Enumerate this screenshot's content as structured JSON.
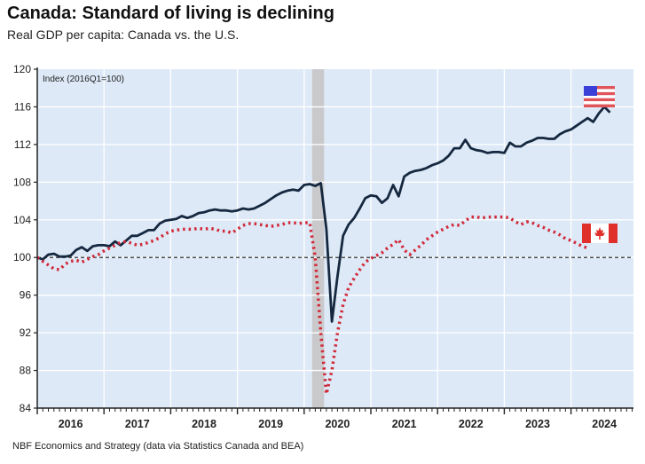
{
  "chart_data": {
    "type": "line",
    "title": "Canada: Standard of living is declining",
    "subtitle": "Real GDP per capita: Canada vs. the U.S.",
    "index_note": "Index (2016Q1=100)",
    "source": "NBF Economics and Strategy (data via Statistics Canada and BEA)",
    "xlabel": "",
    "ylabel": "",
    "ylim": [
      84,
      120
    ],
    "yticks": [
      84,
      88,
      92,
      96,
      100,
      104,
      108,
      112,
      116,
      120
    ],
    "xlim": [
      2016.0,
      2024.95
    ],
    "year_labels": [
      "2016",
      "2017",
      "2018",
      "2019",
      "2020",
      "2021",
      "2022",
      "2023",
      "2024"
    ],
    "grid": true,
    "reference_line": 100,
    "recession_band": [
      2020.12,
      2020.3
    ],
    "legend": [
      {
        "name": "United States",
        "icon": "us-flag",
        "placement": "top-right"
      },
      {
        "name": "Canada",
        "icon": "canada-flag",
        "placement": "right"
      }
    ],
    "colors": {
      "us": "#15283f",
      "canada": "#d12a3a",
      "plot_bg": "#dde9f7",
      "recession": "#c9c9cc"
    },
    "series": [
      {
        "name": "United States",
        "style": "solid",
        "x_start": 2016.0,
        "x_step_months": 1,
        "values": [
          100.0,
          99.8,
          100.3,
          100.4,
          100.1,
          100.1,
          100.2,
          100.8,
          101.1,
          100.7,
          101.2,
          101.3,
          101.3,
          101.2,
          101.7,
          101.3,
          101.8,
          102.3,
          102.3,
          102.6,
          102.9,
          102.9,
          103.6,
          103.9,
          104.0,
          104.1,
          104.4,
          104.2,
          104.4,
          104.7,
          104.8,
          105.0,
          105.1,
          105.0,
          105.0,
          104.9,
          105.0,
          105.2,
          105.1,
          105.2,
          105.5,
          105.8,
          106.2,
          106.6,
          106.9,
          107.1,
          107.2,
          107.1,
          107.7,
          107.8,
          107.6,
          107.9,
          103.0,
          93.2,
          98.0,
          102.3,
          103.5,
          104.2,
          105.2,
          106.3,
          106.6,
          106.5,
          105.8,
          106.3,
          107.7,
          106.5,
          108.6,
          109.0,
          109.2,
          109.3,
          109.5,
          109.8,
          110.0,
          110.3,
          110.8,
          111.6,
          111.6,
          112.5,
          111.6,
          111.4,
          111.3,
          111.1,
          111.2,
          111.2,
          111.1,
          112.2,
          111.8,
          111.8,
          112.2,
          112.4,
          112.7,
          112.7,
          112.6,
          112.6,
          113.1,
          113.4,
          113.6,
          114.0,
          114.4,
          114.8,
          114.4,
          115.3,
          116.0,
          115.4
        ]
      },
      {
        "name": "Canada",
        "style": "dotted",
        "x_start": 2016.0,
        "x_step_months": 1,
        "values": [
          100.0,
          99.6,
          99.2,
          98.8,
          98.7,
          99.3,
          99.6,
          99.7,
          99.5,
          99.8,
          100.1,
          100.3,
          100.7,
          101.0,
          101.3,
          101.6,
          101.7,
          101.5,
          101.3,
          101.4,
          101.6,
          101.8,
          102.1,
          102.5,
          102.8,
          102.9,
          103.0,
          103.0,
          103.0,
          103.1,
          103.0,
          103.1,
          103.0,
          102.8,
          102.8,
          102.6,
          103.0,
          103.4,
          103.6,
          103.6,
          103.5,
          103.4,
          103.3,
          103.4,
          103.5,
          103.7,
          103.7,
          103.6,
          103.7,
          103.7,
          100.0,
          92.0,
          85.5,
          88.0,
          92.0,
          95.0,
          96.8,
          97.8,
          98.7,
          99.5,
          99.9,
          100.2,
          100.5,
          101.0,
          101.4,
          101.9,
          100.8,
          100.3,
          100.8,
          101.3,
          101.9,
          102.3,
          102.7,
          103.0,
          103.3,
          103.5,
          103.4,
          103.9,
          104.3,
          104.3,
          104.2,
          104.3,
          104.3,
          104.3,
          104.3,
          104.2,
          103.8,
          103.5,
          103.8,
          103.7,
          103.4,
          103.2,
          102.9,
          102.7,
          102.4,
          102.0,
          101.8,
          101.5,
          101.2,
          101.0
        ]
      }
    ]
  }
}
